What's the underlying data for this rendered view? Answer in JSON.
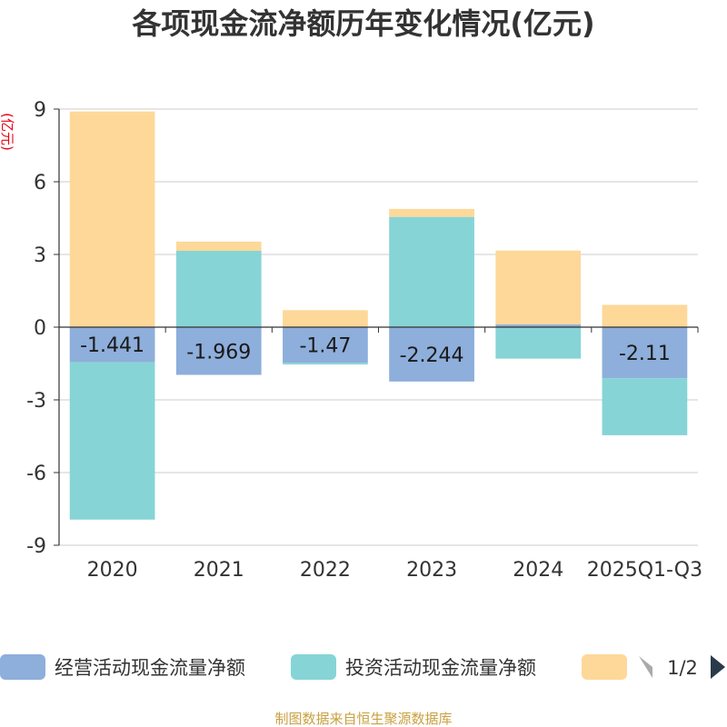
{
  "chart_data": {
    "type": "bar",
    "stacked": true,
    "title": "各项现金流净额历年变化情况(亿元)",
    "ylabel": "(亿元)",
    "xlabel": "",
    "categories": [
      "2020",
      "2021",
      "2022",
      "2023",
      "2024",
      "2025Q1-Q3"
    ],
    "ylim": [
      -9,
      9
    ],
    "yticks": [
      9,
      6,
      3,
      0,
      -3,
      -6,
      -9
    ],
    "grid": true,
    "series": [
      {
        "name": "经营活动现金流量净额",
        "color": "#8eaedb",
        "values": [
          -1.441,
          -1.969,
          -1.47,
          -2.244,
          0.11,
          -2.11
        ]
      },
      {
        "name": "投资活动现金流量净额",
        "color": "#86d4d6",
        "values": [
          -6.5,
          3.15,
          -0.07,
          4.55,
          -1.3,
          -2.35
        ]
      },
      {
        "name": "",
        "color": "#fdd899",
        "values": [
          8.9,
          0.38,
          0.7,
          0.33,
          3.05,
          0.92
        ]
      }
    ],
    "bar_labels": [
      "-1.441",
      "-1.969",
      "-1.47",
      "-2.244",
      "",
      "-2.11"
    ],
    "legend_position": "bottom"
  },
  "legend": {
    "page_indicator": "1/2",
    "prev_icon": "triangle-left-icon",
    "next_icon": "triangle-right-icon"
  },
  "source_text": "制图数据来自恒生聚源数据库"
}
